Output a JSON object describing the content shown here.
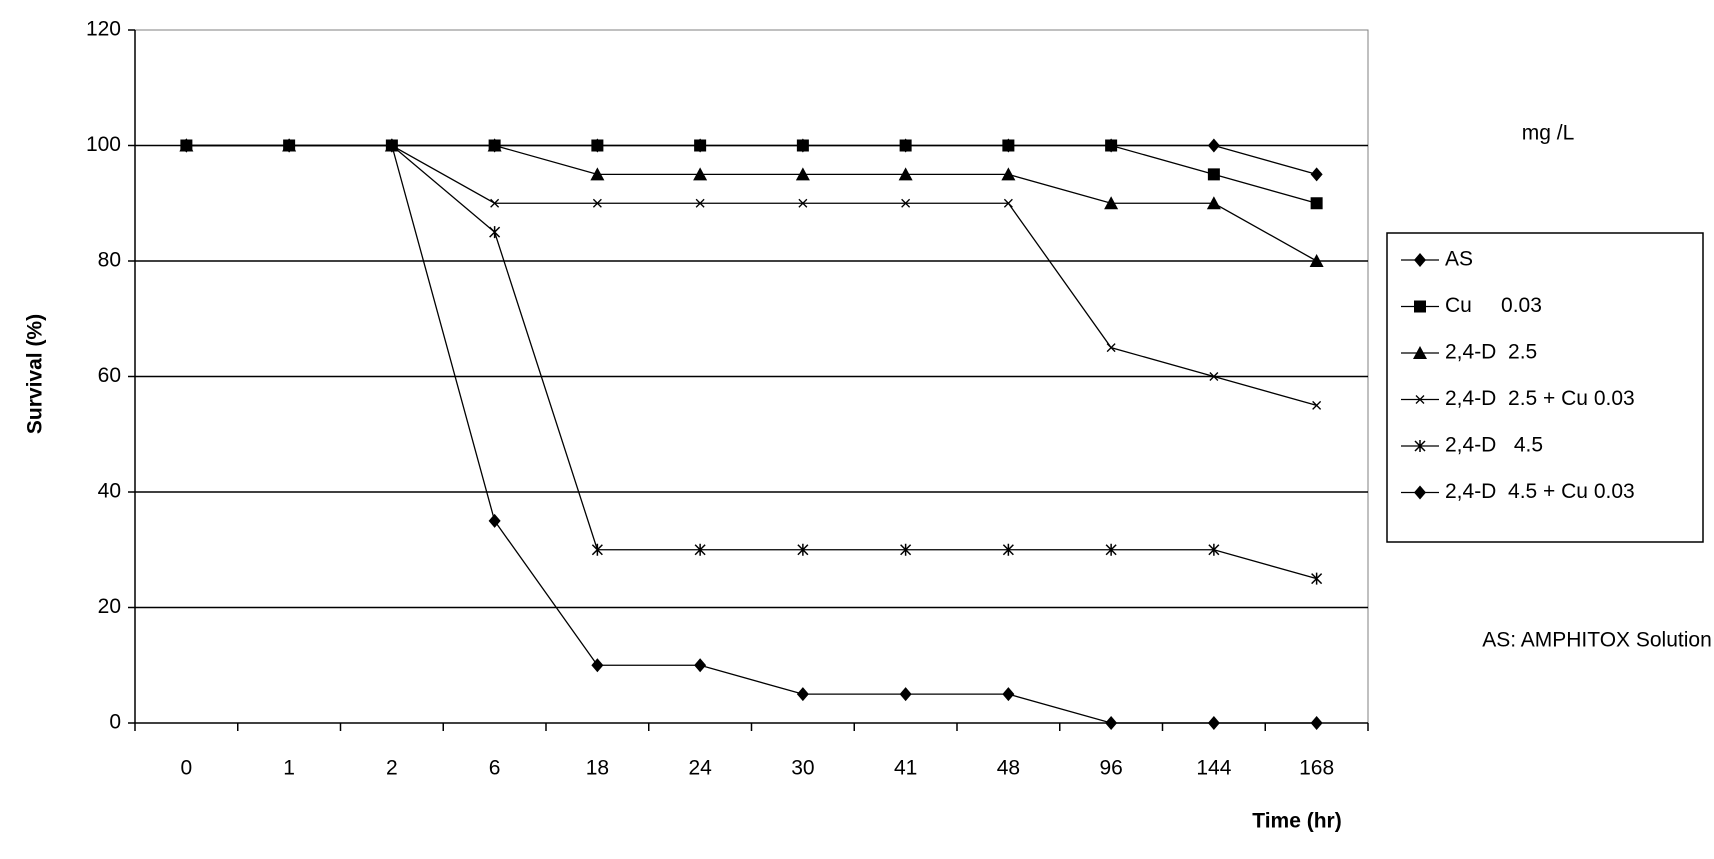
{
  "chart_data": {
    "type": "line",
    "xlabel": "Time (hr)",
    "ylabel": "Survival (%)",
    "annotations": [
      "mg /L",
      "AS: AMPHITOX Solution"
    ],
    "categories": [
      "0",
      "1",
      "2",
      "6",
      "18",
      "24",
      "30",
      "41",
      "48",
      "96",
      "144",
      "168"
    ],
    "series": [
      {
        "name": "AS",
        "color": "#000000",
        "marker": "diamond",
        "values": [
          100,
          100,
          100,
          100,
          100,
          100,
          100,
          100,
          100,
          100,
          100,
          95
        ]
      },
      {
        "name": "Cu     0.03",
        "color": "#000000",
        "marker": "square",
        "values": [
          100,
          100,
          100,
          100,
          100,
          100,
          100,
          100,
          100,
          100,
          95,
          90
        ]
      },
      {
        "name": "2,4-D  2.5",
        "color": "#000000",
        "marker": "triangle",
        "values": [
          100,
          100,
          100,
          100,
          95,
          95,
          95,
          95,
          95,
          90,
          90,
          80
        ]
      },
      {
        "name": "2,4-D  2.5 + Cu 0.03",
        "color": "#000000",
        "marker": "x",
        "values": [
          100,
          100,
          100,
          90,
          90,
          90,
          90,
          90,
          90,
          65,
          60,
          55
        ]
      },
      {
        "name": "2,4-D   4.5",
        "color": "#000000",
        "marker": "star",
        "values": [
          100,
          100,
          100,
          85,
          30,
          30,
          30,
          30,
          30,
          30,
          30,
          25
        ]
      },
      {
        "name": "2,4-D  4.5 + Cu 0.03",
        "color": "#000000",
        "marker": "diamond",
        "values": [
          100,
          100,
          100,
          35,
          10,
          10,
          5,
          5,
          5,
          0,
          0,
          0
        ]
      }
    ],
    "ylim": [
      0,
      120
    ],
    "yticks": [
      0,
      20,
      40,
      60,
      80,
      100,
      120
    ],
    "grid": true,
    "legend": "right"
  }
}
